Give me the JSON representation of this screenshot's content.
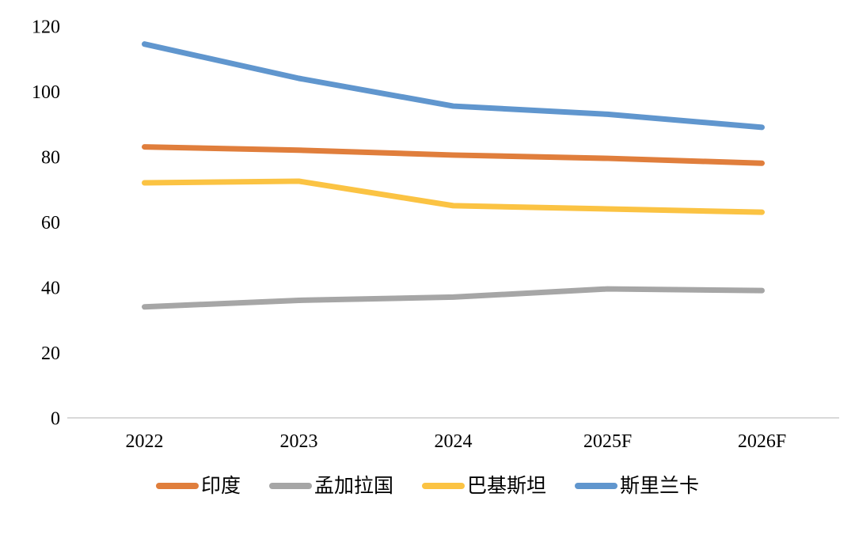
{
  "chart_data": {
    "type": "line",
    "title": "",
    "xlabel": "",
    "ylabel": "",
    "categories": [
      "2022",
      "2023",
      "2024",
      "2025F",
      "2026F"
    ],
    "series": [
      {
        "name": "印度",
        "key": "india",
        "color": "#E07E3C",
        "values": [
          83,
          82,
          80.5,
          79.5,
          78
        ]
      },
      {
        "name": "孟加拉国",
        "key": "bangladesh",
        "color": "#A6A6A6",
        "values": [
          34,
          36,
          37,
          39.5,
          39
        ]
      },
      {
        "name": "巴基斯坦",
        "key": "pakistan",
        "color": "#FBC343",
        "values": [
          72,
          72.5,
          65,
          64,
          63
        ]
      },
      {
        "name": "斯里兰卡",
        "key": "sri-lanka",
        "color": "#6096CE",
        "values": [
          114.5,
          104,
          95.5,
          93,
          89
        ]
      }
    ],
    "ylim": [
      0,
      120
    ],
    "yticks": [
      0,
      20,
      40,
      60,
      80,
      100,
      120
    ],
    "grid": false,
    "legend_position": "bottom",
    "axis_line_color": "#D9D9D9",
    "text_color": "#000000"
  }
}
